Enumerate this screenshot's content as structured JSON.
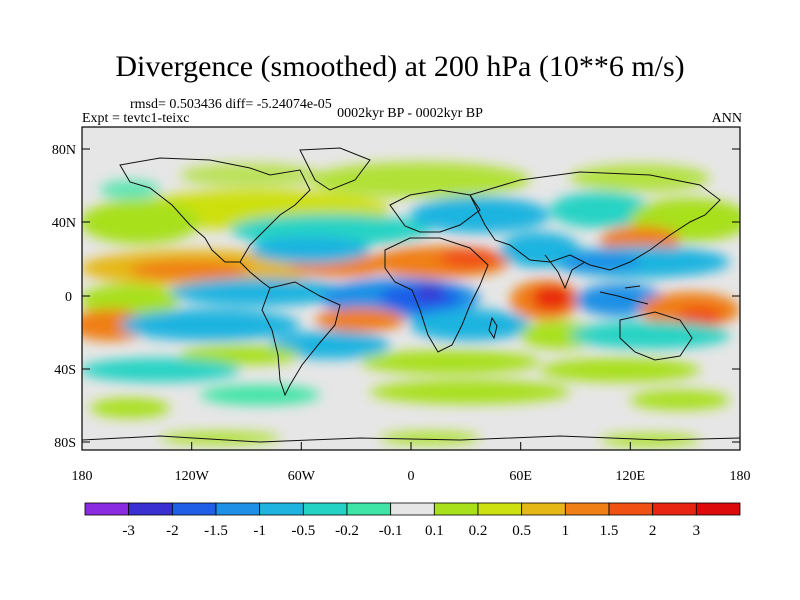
{
  "title": "Divergence (smoothed) at 200 hPa (10**6 m/s)",
  "stats_text": "rmsd= 0.503436 diff= -5.24074e-05",
  "experiment_text": "Expt = tevtc1-teixc",
  "period_text": "0002kyr BP - 0002kyr BP",
  "season_text": "ANN",
  "lat_ticks": [
    "80N",
    "40N",
    "0",
    "40S",
    "80S"
  ],
  "lon_ticks": [
    "180",
    "120W",
    "60W",
    "0",
    "60E",
    "120E",
    "180"
  ],
  "colorbar": {
    "labels": [
      "-3",
      "-2",
      "-1.5",
      "-1",
      "-0.5",
      "-0.2",
      "-0.1",
      "0.1",
      "0.2",
      "0.5",
      "1",
      "1.5",
      "2",
      "3"
    ],
    "colors": [
      "#8a2be2",
      "#3a2fd0",
      "#1f5fe8",
      "#1e90e6",
      "#1fb4e0",
      "#25d3c4",
      "#3fe5a6",
      "#e6e6e6",
      "#a8e01a",
      "#cde010",
      "#e6b816",
      "#f07f16",
      "#f05012",
      "#e82510",
      "#dc0a0a"
    ]
  },
  "colors": {
    "background": "#e6e6e6",
    "coast": "#111111"
  }
}
